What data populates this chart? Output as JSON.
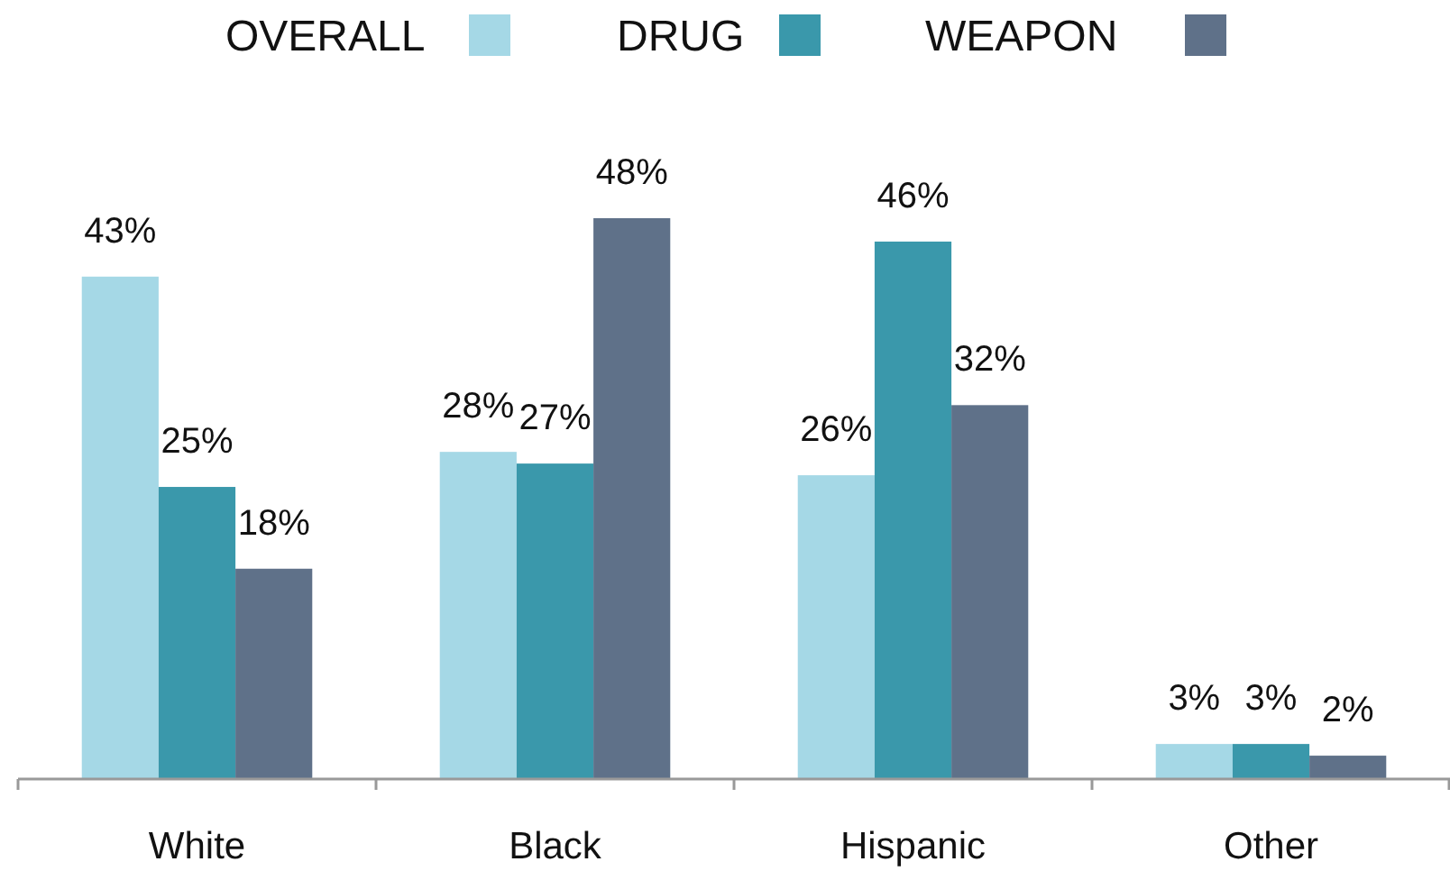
{
  "chart_data": {
    "type": "bar",
    "categories": [
      "White",
      "Black",
      "Hispanic",
      "Other"
    ],
    "series": [
      {
        "name": "OVERALL",
        "color": "#a5d8e6",
        "values": [
          43,
          28,
          26,
          3
        ],
        "value_labels": [
          "43%",
          "28%",
          "26%",
          "3%"
        ]
      },
      {
        "name": "DRUG",
        "color": "#3a98ab",
        "values": [
          25,
          27,
          46,
          3
        ],
        "value_labels": [
          "25%",
          "27%",
          "46%",
          "3%"
        ]
      },
      {
        "name": "WEAPON",
        "color": "#5f7189",
        "values": [
          18,
          48,
          32,
          2
        ],
        "value_labels": [
          "18%",
          "48%",
          "32%",
          "2%"
        ]
      }
    ],
    "legend": "top"
  }
}
